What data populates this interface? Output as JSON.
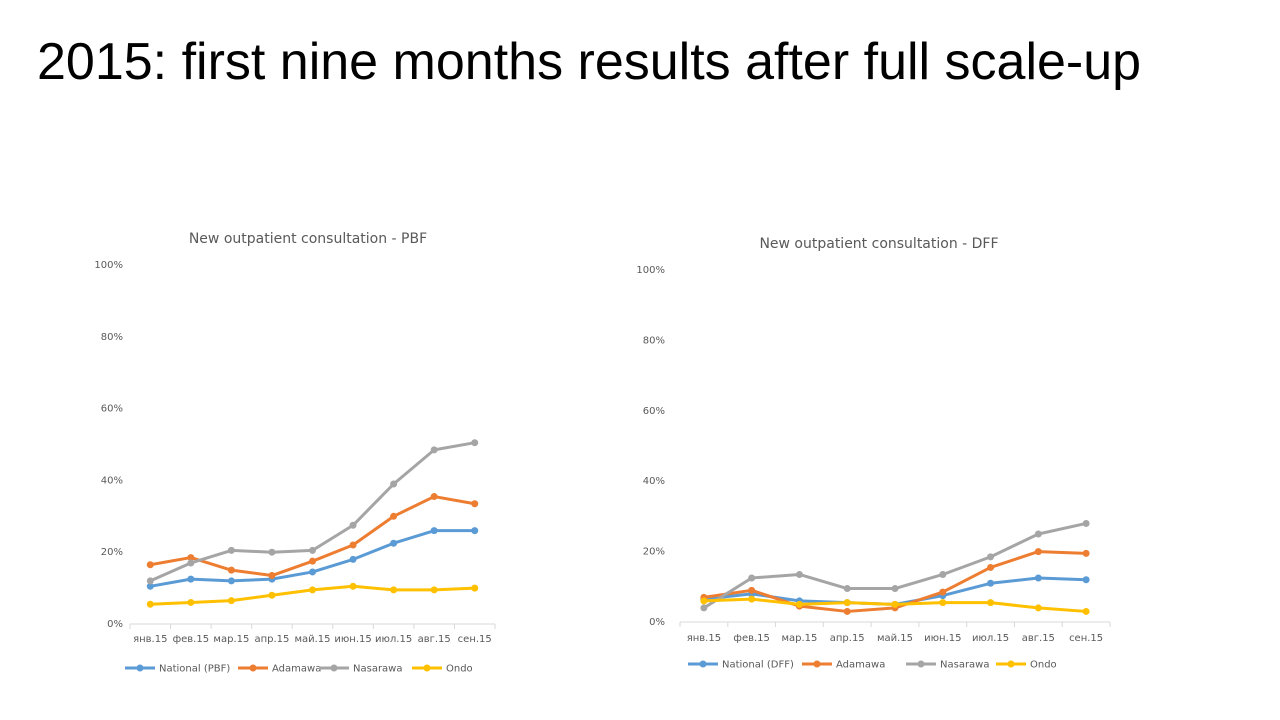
{
  "slide": {
    "title": "2015: first nine months results after full scale-up"
  },
  "colors": {
    "national": "#5B9BD5",
    "adamawa": "#ED7D31",
    "nasarawa": "#A5A5A5",
    "ondo": "#FFC000",
    "axis": "#D9D9D9",
    "text": "#595959"
  },
  "chart_data": [
    {
      "type": "line",
      "title": "New outpatient consultation - PBF",
      "xlabel": "",
      "ylabel": "",
      "ylim": [
        0,
        100
      ],
      "yticks": [
        "0%",
        "20%",
        "40%",
        "60%",
        "80%",
        "100%"
      ],
      "grid": false,
      "legend_position": "bottom",
      "categories": [
        "янв.15",
        "фев.15",
        "мар.15",
        "апр.15",
        "май.15",
        "июн.15",
        "июл.15",
        "авг.15",
        "сен.15"
      ],
      "series": [
        {
          "name": "National (PBF)",
          "color": "#5B9BD5",
          "values": [
            10.5,
            12.5,
            12,
            12.5,
            14.5,
            18,
            22.5,
            26,
            26
          ]
        },
        {
          "name": "Adamawa",
          "color": "#ED7D31",
          "values": [
            16.5,
            18.5,
            15,
            13.5,
            17.5,
            22,
            30,
            35.5,
            33.5
          ]
        },
        {
          "name": "Nasarawa",
          "color": "#A5A5A5",
          "values": [
            12,
            17,
            20.5,
            20,
            20.5,
            27.5,
            39,
            48.5,
            50.5
          ]
        },
        {
          "name": "Ondo",
          "color": "#FFC000",
          "values": [
            5.5,
            6,
            6.5,
            8,
            9.5,
            10.5,
            9.5,
            9.5,
            10
          ]
        }
      ]
    },
    {
      "type": "line",
      "title": "New outpatient consultation - DFF",
      "xlabel": "",
      "ylabel": "",
      "ylim": [
        0,
        100
      ],
      "yticks": [
        "0%",
        "20%",
        "40%",
        "60%",
        "80%",
        "100%"
      ],
      "grid": false,
      "legend_position": "bottom",
      "categories": [
        "янв.15",
        "фев.15",
        "мар.15",
        "апр.15",
        "май.15",
        "июн.15",
        "июл.15",
        "авг.15",
        "сен.15"
      ],
      "series": [
        {
          "name": "National (DFF)",
          "color": "#5B9BD5",
          "values": [
            6.5,
            8,
            6,
            5.5,
            5,
            7.5,
            11,
            12.5,
            12
          ]
        },
        {
          "name": "Adamawa",
          "color": "#ED7D31",
          "values": [
            7,
            9,
            4.5,
            3,
            4,
            8.5,
            15.5,
            20,
            19.5
          ]
        },
        {
          "name": "Nasarawa",
          "color": "#A5A5A5",
          "values": [
            4,
            12.5,
            13.5,
            9.5,
            9.5,
            13.5,
            18.5,
            25,
            28
          ]
        },
        {
          "name": "Ondo",
          "color": "#FFC000",
          "values": [
            6,
            6.5,
            5,
            5.5,
            5,
            5.5,
            5.5,
            4,
            3
          ]
        }
      ]
    }
  ]
}
